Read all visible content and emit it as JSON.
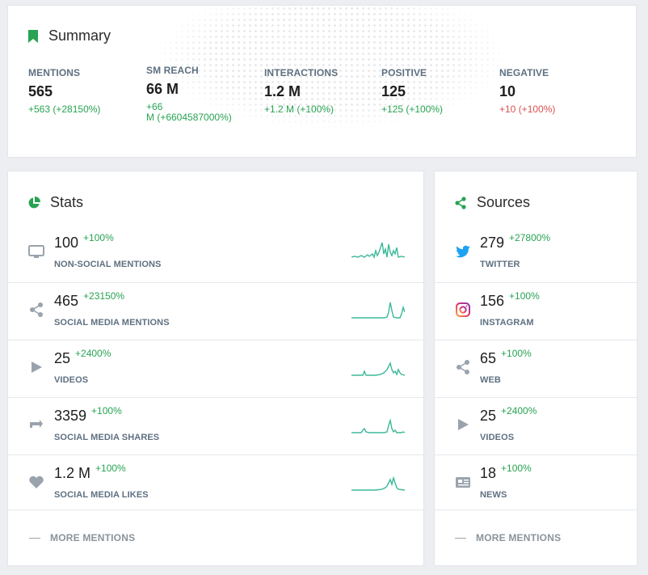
{
  "summary": {
    "title": "Summary",
    "metrics": [
      {
        "label": "MENTIONS",
        "value": "565",
        "delta": "+563  (+28150%)",
        "positive": true
      },
      {
        "label": "SM REACH",
        "value": "66 M",
        "delta_line1": "+66",
        "delta_line2": "M  (+6604587000%)",
        "positive": true
      },
      {
        "label": "INTERACTIONS",
        "value": "1.2 M",
        "delta": "+1.2 M  (+100%)",
        "positive": true
      },
      {
        "label": "POSITIVE",
        "value": "125",
        "delta": "+125  (+100%)",
        "positive": true
      },
      {
        "label": "NEGATIVE",
        "value": "10",
        "delta": "+10  (+100%)",
        "positive": false
      }
    ]
  },
  "stats": {
    "title": "Stats",
    "rows": [
      {
        "value": "100",
        "delta": "+100%",
        "label": "NON-SOCIAL MENTIONS",
        "icon": "monitor-icon"
      },
      {
        "value": "465",
        "delta": "+23150%",
        "label": "SOCIAL MEDIA MENTIONS",
        "icon": "share-icon"
      },
      {
        "value": "25",
        "delta": "+2400%",
        "label": "VIDEOS",
        "icon": "play-icon"
      },
      {
        "value": "3359",
        "delta": "+100%",
        "label": "SOCIAL MEDIA SHARES",
        "icon": "retweet-icon"
      },
      {
        "value": "1.2 M",
        "delta": "+100%",
        "label": "SOCIAL MEDIA LIKES",
        "icon": "heart-icon"
      }
    ],
    "more_label": "MORE MENTIONS"
  },
  "sources": {
    "title": "Sources",
    "rows": [
      {
        "value": "279",
        "delta": "+27800%",
        "label": "TWITTER",
        "icon": "twitter-icon"
      },
      {
        "value": "156",
        "delta": "+100%",
        "label": "INSTAGRAM",
        "icon": "instagram-icon"
      },
      {
        "value": "65",
        "delta": "+100%",
        "label": "WEB",
        "icon": "share-icon"
      },
      {
        "value": "25",
        "delta": "+2400%",
        "label": "VIDEOS",
        "icon": "play-icon"
      },
      {
        "value": "18",
        "delta": "+100%",
        "label": "NEWS",
        "icon": "newspaper-icon"
      }
    ],
    "more_label": "MORE MENTIONS"
  },
  "colors": {
    "accent": "#27a352",
    "negative": "#d9534f",
    "spark": "#3bb89a",
    "muted_label": "#5e7081",
    "icon_gray": "#9aa3ad",
    "twitter": "#1da1f2"
  }
}
